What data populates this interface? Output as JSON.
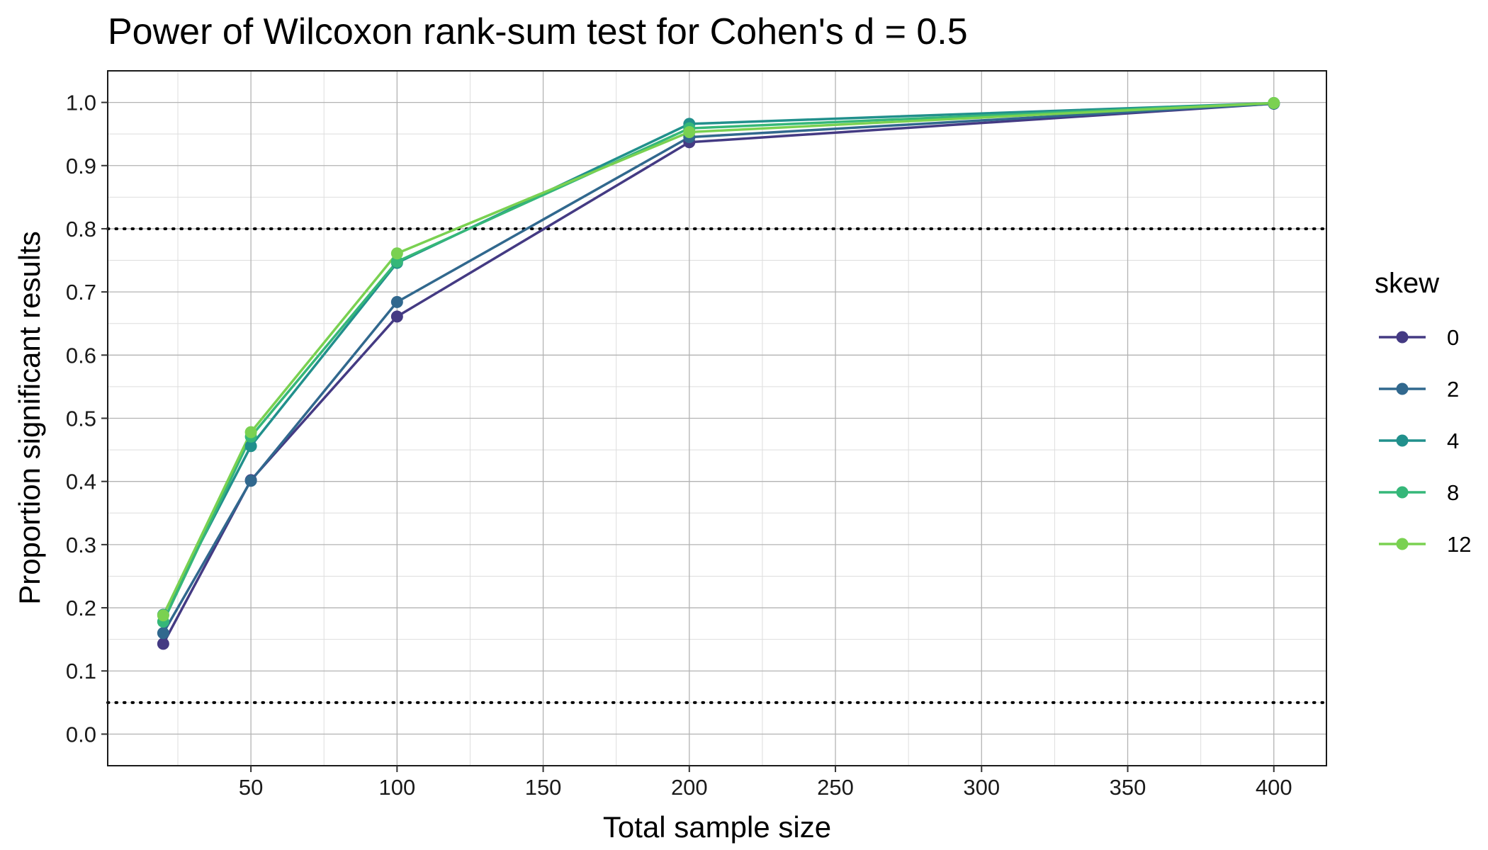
{
  "chart_data": {
    "type": "line",
    "title": "Power of Wilcoxon rank-sum test for Cohen's d = 0.5",
    "xlabel": "Total sample size",
    "ylabel": "Proportion significant results",
    "x_ticks": [
      50,
      100,
      150,
      200,
      250,
      300,
      350,
      400
    ],
    "y_ticks": [
      "0.0",
      "0.1",
      "0.2",
      "0.3",
      "0.4",
      "0.5",
      "0.6",
      "0.7",
      "0.8",
      "0.9",
      "1.0"
    ],
    "xlim": [
      1,
      418
    ],
    "ylim": [
      -0.05,
      1.05
    ],
    "grid": true,
    "reference_lines": [
      0.8,
      0.05
    ],
    "legend": {
      "title": "skew",
      "position": "right"
    },
    "x": [
      20,
      50,
      100,
      200,
      400
    ],
    "series": [
      {
        "name": "0",
        "color": "#443A83",
        "values": [
          0.143,
          0.402,
          0.661,
          0.937,
          0.998
        ]
      },
      {
        "name": "2",
        "color": "#31688E",
        "values": [
          0.16,
          0.401,
          0.684,
          0.945,
          0.998
        ]
      },
      {
        "name": "4",
        "color": "#21908C",
        "values": [
          0.189,
          0.456,
          0.746,
          0.966,
          0.999
        ]
      },
      {
        "name": "8",
        "color": "#35B779",
        "values": [
          0.178,
          0.471,
          0.748,
          0.959,
          0.999
        ]
      },
      {
        "name": "12",
        "color": "#7AD151",
        "values": [
          0.188,
          0.478,
          0.761,
          0.953,
          0.999
        ]
      }
    ]
  }
}
